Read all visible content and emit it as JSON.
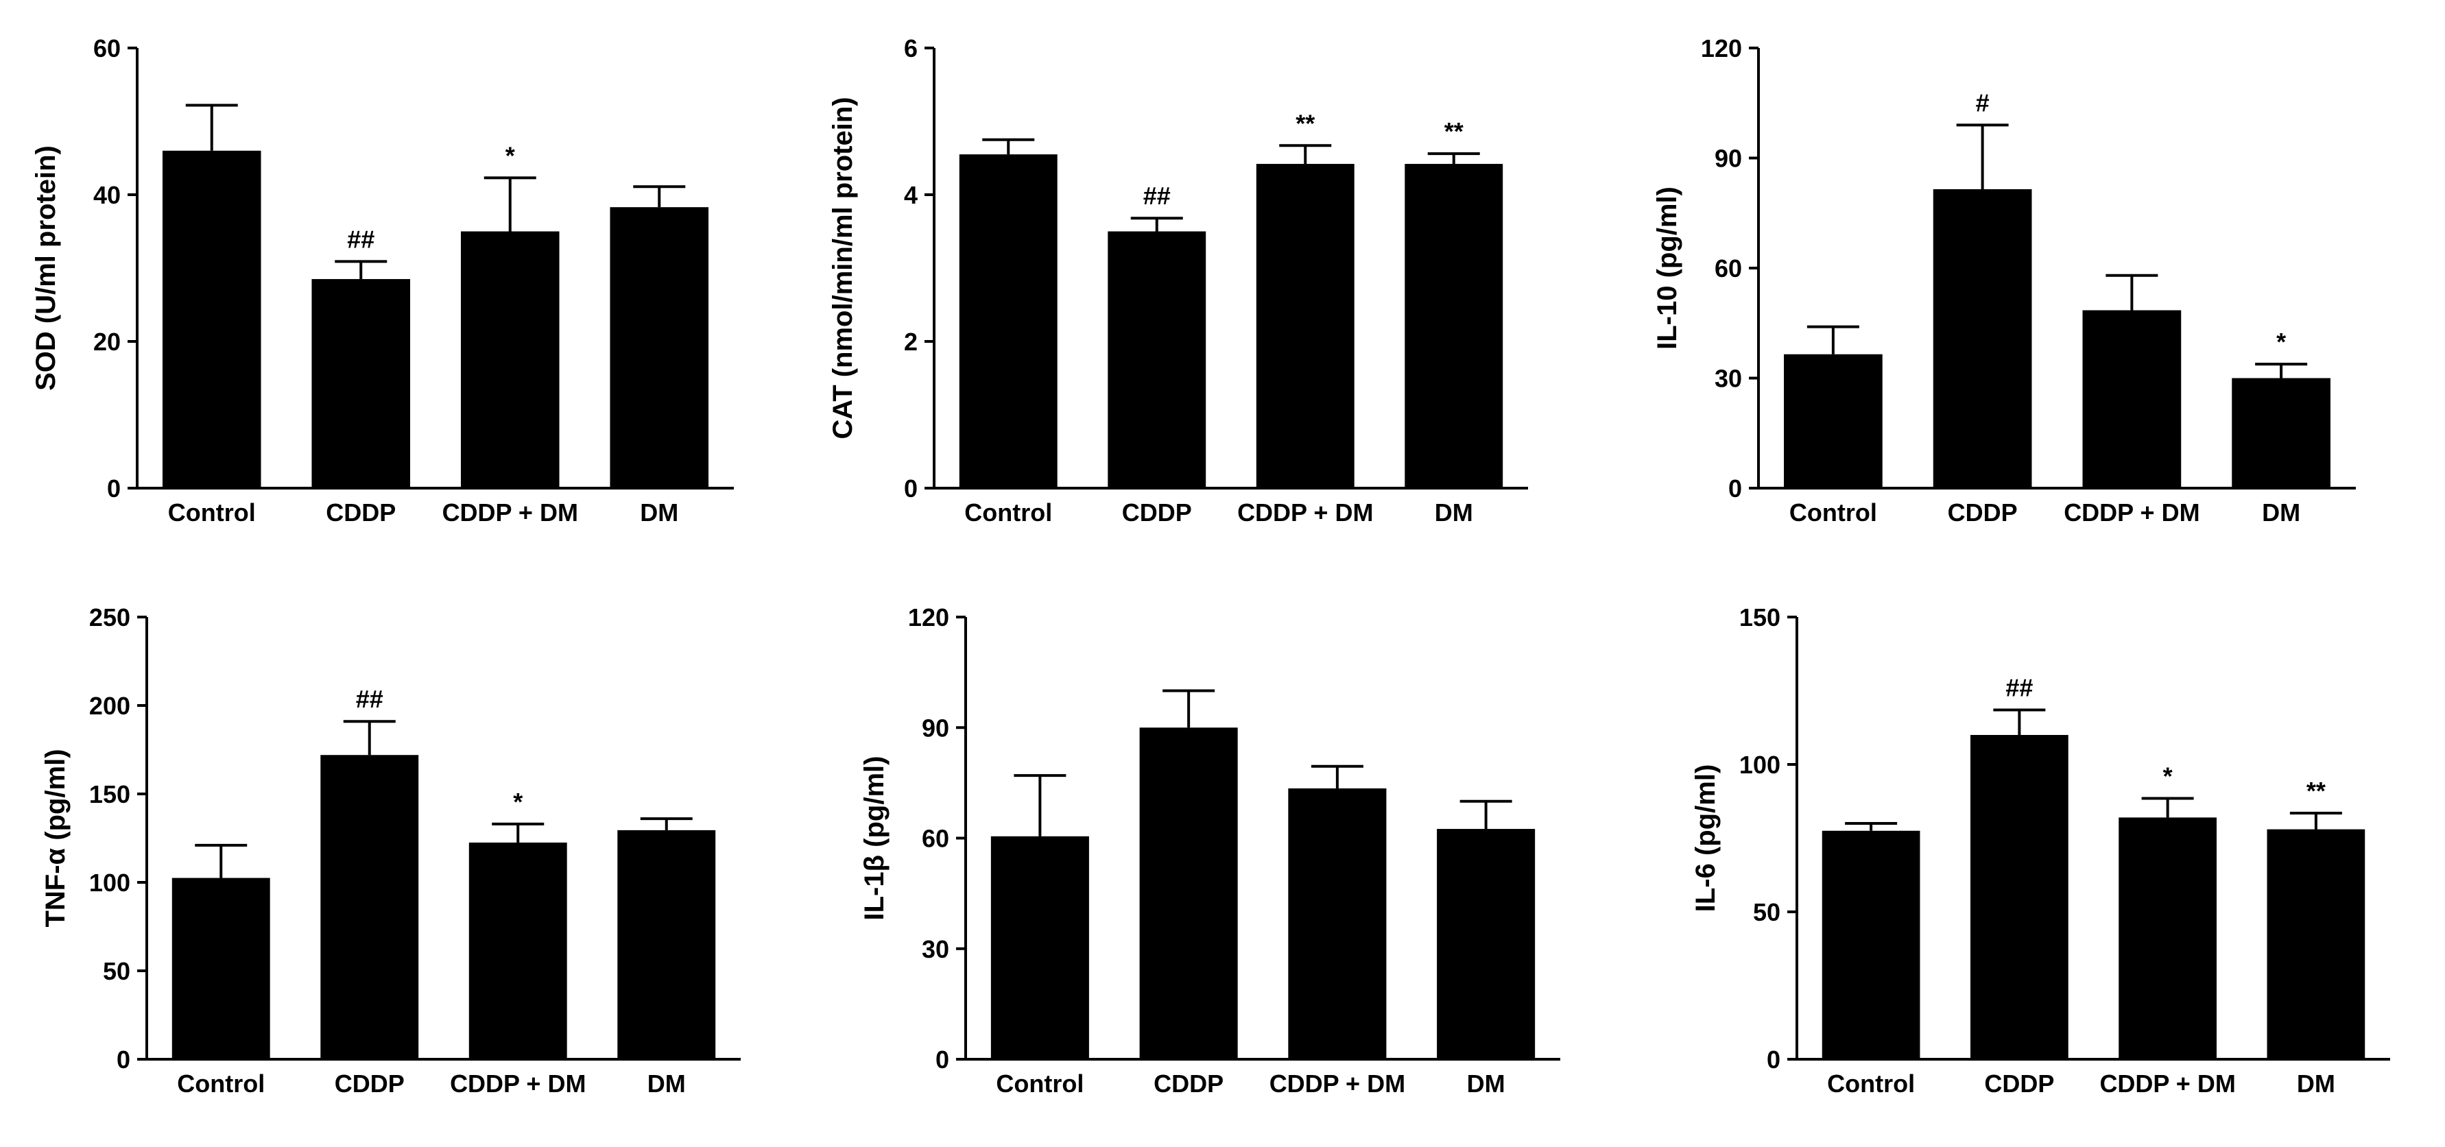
{
  "figure": {
    "background": "#ffffff",
    "bar_color": "#000000",
    "axis_color": "#000000"
  },
  "chart_data": [
    {
      "type": "bar",
      "title": "",
      "ylabel": "SOD (U/ml protein)",
      "xlabel": "",
      "categories": [
        "Control",
        "CDDP",
        "CDDP + DM",
        "DM"
      ],
      "values": [
        46,
        28.5,
        35,
        38.3
      ],
      "errors": [
        6.2,
        2.4,
        7.3,
        2.8
      ],
      "annotations": [
        "",
        "##",
        "*",
        ""
      ],
      "ylim": [
        0,
        60
      ],
      "yticks": [
        "0",
        "20",
        "40",
        "60"
      ],
      "grid": false,
      "legend": "none"
    },
    {
      "type": "bar",
      "title": "",
      "ylabel": "CAT (nmol/min/ml protein)",
      "xlabel": "",
      "categories": [
        "Control",
        "CDDP",
        "CDDP + DM",
        "DM"
      ],
      "values": [
        4.55,
        3.5,
        4.42,
        4.42
      ],
      "errors": [
        0.2,
        0.18,
        0.25,
        0.14
      ],
      "annotations": [
        "",
        "##",
        "**",
        "**"
      ],
      "ylim": [
        0,
        6
      ],
      "yticks": [
        "0",
        "2",
        "4",
        "6"
      ],
      "grid": false,
      "legend": "none"
    },
    {
      "type": "bar",
      "title": "",
      "ylabel": "IL-10 (pg/ml)",
      "xlabel": "",
      "categories": [
        "Control",
        "CDDP",
        "CDDP + DM",
        "DM"
      ],
      "values": [
        36.5,
        81.5,
        48.5,
        30
      ],
      "errors": [
        7.5,
        17.5,
        9.5,
        3.8
      ],
      "annotations": [
        "",
        "#",
        "",
        "*"
      ],
      "ylim": [
        0,
        120
      ],
      "yticks": [
        "0",
        "30",
        "60",
        "90",
        "120"
      ],
      "grid": false,
      "legend": "none"
    },
    {
      "type": "bar",
      "title": "",
      "ylabel": "TNF-α (pg/ml)",
      "xlabel": "",
      "categories": [
        "Control",
        "CDDP",
        "CDDP + DM",
        "DM"
      ],
      "values": [
        102.5,
        172,
        122.5,
        129.5
      ],
      "errors": [
        18.5,
        19,
        10.5,
        6.5
      ],
      "annotations": [
        "",
        "##",
        "*",
        ""
      ],
      "ylim": [
        0,
        250
      ],
      "yticks": [
        "0",
        "50",
        "100",
        "150",
        "200",
        "250"
      ],
      "grid": false,
      "legend": "none"
    },
    {
      "type": "bar",
      "title": "",
      "ylabel": "IL-1β (pg/ml)",
      "xlabel": "",
      "categories": [
        "Control",
        "CDDP",
        "CDDP + DM",
        "DM"
      ],
      "values": [
        60.5,
        90,
        73.5,
        62.5
      ],
      "errors": [
        16.5,
        10,
        6,
        7.5
      ],
      "annotations": [
        "",
        "",
        "",
        ""
      ],
      "ylim": [
        0,
        120
      ],
      "yticks": [
        "0",
        "30",
        "60",
        "90",
        "120"
      ],
      "grid": false,
      "legend": "none"
    },
    {
      "type": "bar",
      "title": "",
      "ylabel": "IL-6 (pg/ml)",
      "xlabel": "",
      "categories": [
        "Control",
        "CDDP",
        "CDDP + DM",
        "DM"
      ],
      "values": [
        77.5,
        110,
        82,
        78
      ],
      "errors": [
        2.5,
        8.5,
        6.5,
        5.5
      ],
      "annotations": [
        "",
        "##",
        "*",
        "**"
      ],
      "ylim": [
        0,
        150
      ],
      "yticks": [
        "0",
        "50",
        "100",
        "150"
      ],
      "grid": false,
      "legend": "none"
    }
  ]
}
